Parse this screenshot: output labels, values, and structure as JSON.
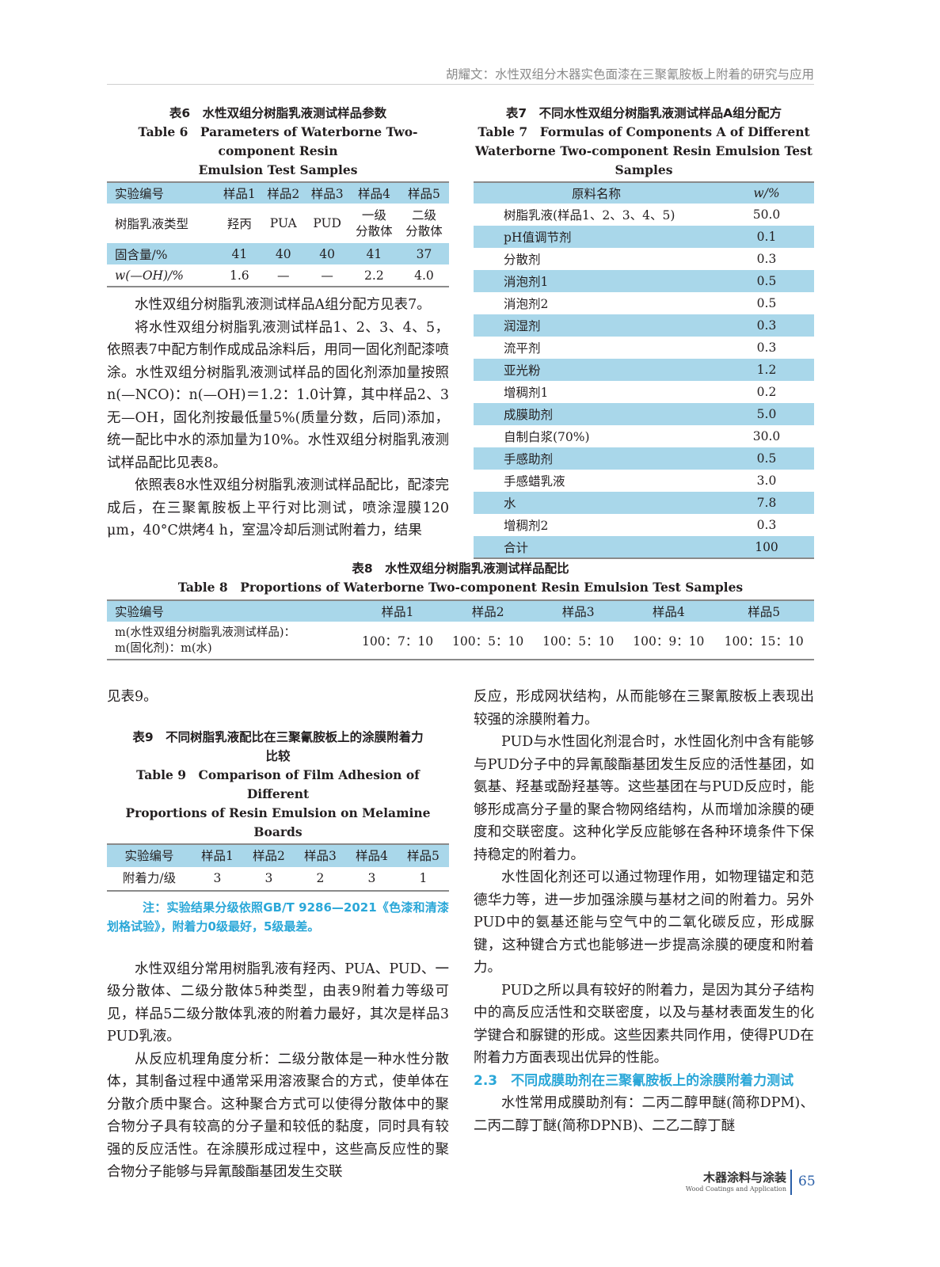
{
  "header": {
    "running_title": "胡耀文：水性双组分木器实色面漆在三聚氰胺板上附着的研究与应用"
  },
  "table6": {
    "title_zh": "表6　水性双组分树脂乳液测试样品参数",
    "title_en_1": "Table 6　Parameters of Waterborne Two-component Resin",
    "title_en_2": "Emulsion Test Samples",
    "headers": [
      "实验编号",
      "样品1",
      "样品2",
      "样品3",
      "样品4",
      "样品5"
    ],
    "rows": [
      [
        "树脂乳液类型",
        "羟丙",
        "PUA",
        "PUD",
        "一级\n分散体",
        "二级\n分散体"
      ],
      [
        "固含量/%",
        "41",
        "40",
        "40",
        "41",
        "37"
      ],
      [
        "w(—OH)/%",
        "1.6",
        "—",
        "—",
        "2.2",
        "4.0"
      ]
    ]
  },
  "table7": {
    "title_zh": "表7　不同水性双组分树脂乳液测试样品A组分配方",
    "title_en_1": "Table 7　Formulas of Components A of Different",
    "title_en_2": "Waterborne Two-component Resin Emulsion Test Samples",
    "headers": [
      "原料名称",
      "w/%"
    ],
    "rows": [
      [
        "树脂乳液(样品1、2、3、4、5)",
        "50.0"
      ],
      [
        "pH值调节剂",
        "0.1"
      ],
      [
        "分散剂",
        "0.3"
      ],
      [
        "消泡剂1",
        "0.5"
      ],
      [
        "消泡剂2",
        "0.5"
      ],
      [
        "润湿剂",
        "0.3"
      ],
      [
        "流平剂",
        "0.3"
      ],
      [
        "亚光粉",
        "1.2"
      ],
      [
        "增稠剂1",
        "0.2"
      ],
      [
        "成膜助剂",
        "5.0"
      ],
      [
        "自制白浆(70%)",
        "30.0"
      ],
      [
        "手感助剂",
        "0.5"
      ],
      [
        "手感蜡乳液",
        "3.0"
      ],
      [
        "水",
        "7.8"
      ],
      [
        "增稠剂2",
        "0.3"
      ],
      [
        "合计",
        "100"
      ]
    ]
  },
  "left_top": {
    "paragraphs": [
      "水性双组分树脂乳液测试样品A组分配方见表7。",
      "将水性双组分树脂乳液测试样品1、2、3、4、5，依照表7中配方制作成成品涂料后，用同一固化剂配漆喷涂。水性双组分树脂乳液测试样品的固化剂添加量按照n(—NCO)：n(—OH)＝1.2：1.0计算，其中样品2、3无—OH，固化剂按最低量5%(质量分数，后同)添加，统一配比中水的添加量为10%。水性双组分树脂乳液测试样品配比见表8。",
      "依照表8水性双组分树脂乳液测试样品配比，配漆完成后，在三聚氰胺板上平行对比测试，喷涂湿膜120 μm，40°C烘烤4 h，室温冷却后测试附着力，结果"
    ]
  },
  "table8": {
    "title_zh": "表8　水性双组分树脂乳液测试样品配比",
    "title_en": "Table 8　Proportions of Waterborne Two-component Resin Emulsion Test Samples",
    "headers": [
      "实验编号",
      "样品1",
      "样品2",
      "样品3",
      "样品4",
      "样品5"
    ],
    "row_label_1": "m(水性双组分树脂乳液测试样品)：",
    "row_label_2": "m(固化剂)：m(水)",
    "values": [
      "100：7：10",
      "100：5：10",
      "100：5：10",
      "100：9：10",
      "100：15：10"
    ]
  },
  "left_bottom": {
    "lead": "见表9。",
    "paragraphs": [
      "水性双组分常用树脂乳液有羟丙、PUA、PUD、一级分散体、二级分散体5种类型，由表9附着力等级可见，样品5二级分散体乳液的附着力最好，其次是样品3 PUD乳液。",
      "从反应机理角度分析：二级分散体是一种水性分散体，其制备过程中通常采用溶液聚合的方式，使单体在分散介质中聚合。这种聚合方式可以使得分散体中的聚合物分子具有较高的分子量和较低的黏度，同时具有较强的反应活性。在涂膜形成过程中，这些高反应性的聚合物分子能够与异氰酸酯基团发生交联"
    ]
  },
  "table9": {
    "title_zh_1": "表9　不同树脂乳液配比在三聚氰胺板上的涂膜附着力",
    "title_zh_2": "比较",
    "title_en_1": "Table 9　Comparison of Film Adhesion of Different",
    "title_en_2": "Proportions of Resin Emulsion on Melamine Boards",
    "headers": [
      "实验编号",
      "样品1",
      "样品2",
      "样品3",
      "样品4",
      "样品5"
    ],
    "row": [
      "附着力/级",
      "3",
      "3",
      "2",
      "3",
      "1"
    ],
    "note": "注：实验结果分级依照GB/T 9286—2021《色漆和清漆　划格试验》，附着力0级最好，5级最差。"
  },
  "right_bottom": {
    "paragraphs": [
      "反应，形成网状结构，从而能够在三聚氰胺板上表现出较强的涂膜附着力。",
      "PUD与水性固化剂混合时，水性固化剂中含有能够与PUD分子中的异氰酸酯基团发生反应的活性基团，如氨基、羟基或酚羟基等。这些基团在与PUD反应时，能够形成高分子量的聚合物网络结构，从而增加涂膜的硬度和交联密度。这种化学反应能够在各种环境条件下保持稳定的附着力。",
      "水性固化剂还可以通过物理作用，如物理锚定和范德华力等，进一步加强涂膜与基材之间的附着力。另外PUD中的氨基还能与空气中的二氧化碳反应，形成脲键，这种键合方式也能够进一步提高涂膜的硬度和附着力。",
      "PUD之所以具有较好的附着力，是因为其分子结构中的高反应活性和交联密度，以及与基材表面发生的化学键合和脲键的形成。这些因素共同作用，使得PUD在附着力方面表现出优异的性能。"
    ],
    "section_heading": "2.3　不同成膜助剂在三聚氰胺板上的涂膜附着力测试",
    "after_heading": "水性常用成膜助剂有：二丙二醇甲醚(简称DPM)、二丙二醇丁醚(简称DPNB)、二乙二醇丁醚"
  },
  "footer": {
    "journal_zh": "木器涂料与涂装",
    "journal_en": "Wood Coatings and Application",
    "page": "65"
  },
  "colors": {
    "table_header": "#a9d7ea",
    "accent": "#2aa7d8"
  }
}
